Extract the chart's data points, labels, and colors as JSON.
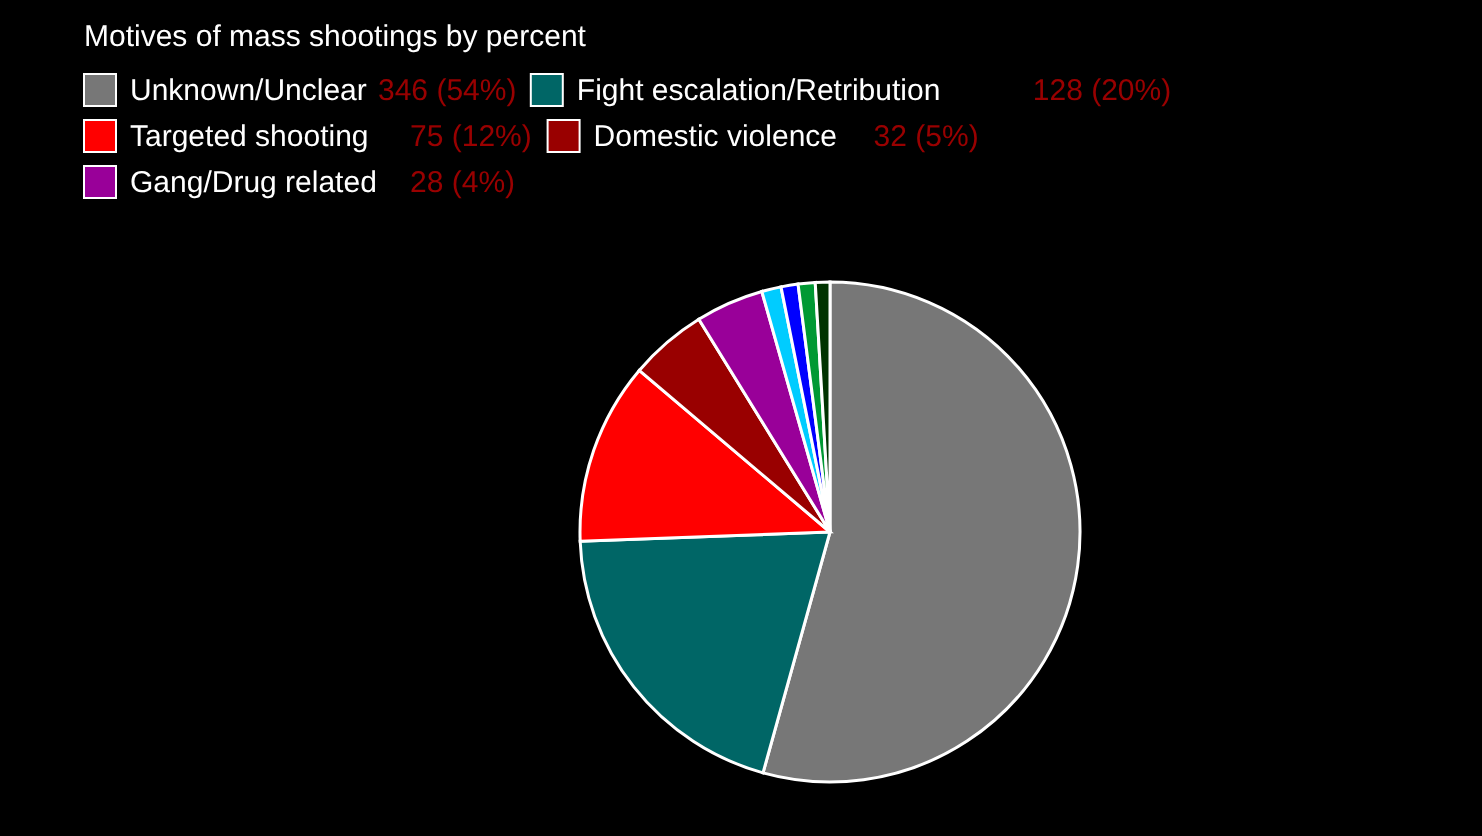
{
  "chart_data": {
    "type": "pie",
    "title": "Motives of mass shootings by percent",
    "legend": "top left",
    "categories": [
      "Unknown/Unclear",
      "Fight escalation/Retribution",
      "Targeted shooting",
      "Domestic violence",
      "Gang/Drug related",
      null,
      null,
      null,
      null
    ],
    "values": [
      346,
      128,
      75,
      32,
      28,
      8,
      7,
      7,
      6
    ],
    "value_labels": [
      "346 (54%)",
      "128 (20%)",
      "75 (12%)",
      "32 (5%)",
      "28 (4%)",
      null,
      null,
      null,
      null
    ],
    "colors": [
      "#777777",
      "#006666",
      "#ff0000",
      "#990000",
      "#990099",
      "#00ccff",
      "#0000ff",
      "#009933",
      "#003300"
    ]
  }
}
